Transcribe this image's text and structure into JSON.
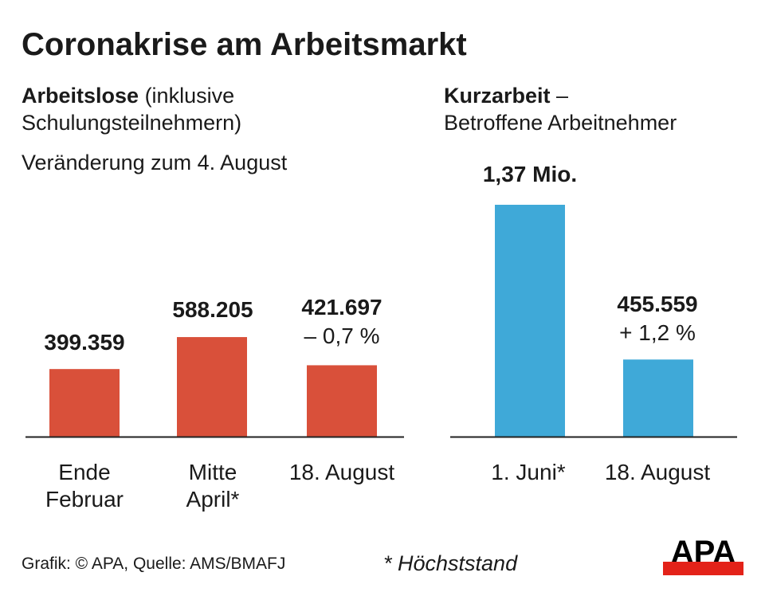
{
  "title": "Coronakrise am Arbeitsmarkt",
  "left_panel": {
    "heading_bold": "Arbeitslose",
    "heading_rest": " (inklusive",
    "heading_line2": "Schulungsteilnehmern)",
    "note": "Veränderung zum 4. August"
  },
  "right_panel": {
    "heading_bold": "Kurzarbeit",
    "heading_rest": " –",
    "heading_line2": "Betroffene Arbeitnehmer"
  },
  "colors": {
    "arbeitslose": "#d9503a",
    "kurzarbeit": "#3fa9d8",
    "axis": "#222222"
  },
  "chart_data": [
    {
      "type": "bar",
      "title": "Arbeitslose (inklusive Schulungsteilnehmern)",
      "categories": [
        "Ende Februar",
        "Mitte April*",
        "18. August"
      ],
      "category_lines": [
        [
          "Ende",
          "Februar"
        ],
        [
          "Mitte",
          "April*"
        ],
        [
          "18. August",
          ""
        ]
      ],
      "values": [
        399359,
        588205,
        421697
      ],
      "data_labels": [
        "399.359",
        "588.205",
        "421.697"
      ],
      "change_labels": [
        "",
        "",
        "– 0,7 %"
      ],
      "color": "#d9503a"
    },
    {
      "type": "bar",
      "title": "Kurzarbeit – Betroffene Arbeitnehmer",
      "categories": [
        "1. Juni*",
        "18. August"
      ],
      "values": [
        1370000,
        455559
      ],
      "data_labels": [
        "1,37 Mio.",
        "455.559"
      ],
      "change_labels": [
        "",
        "+ 1,2 %"
      ],
      "color": "#3fa9d8"
    }
  ],
  "footer": {
    "source": "Grafik: © APA, Quelle: AMS/BMAFJ",
    "footnote": "* Höchststand",
    "logo_text": "APA"
  }
}
